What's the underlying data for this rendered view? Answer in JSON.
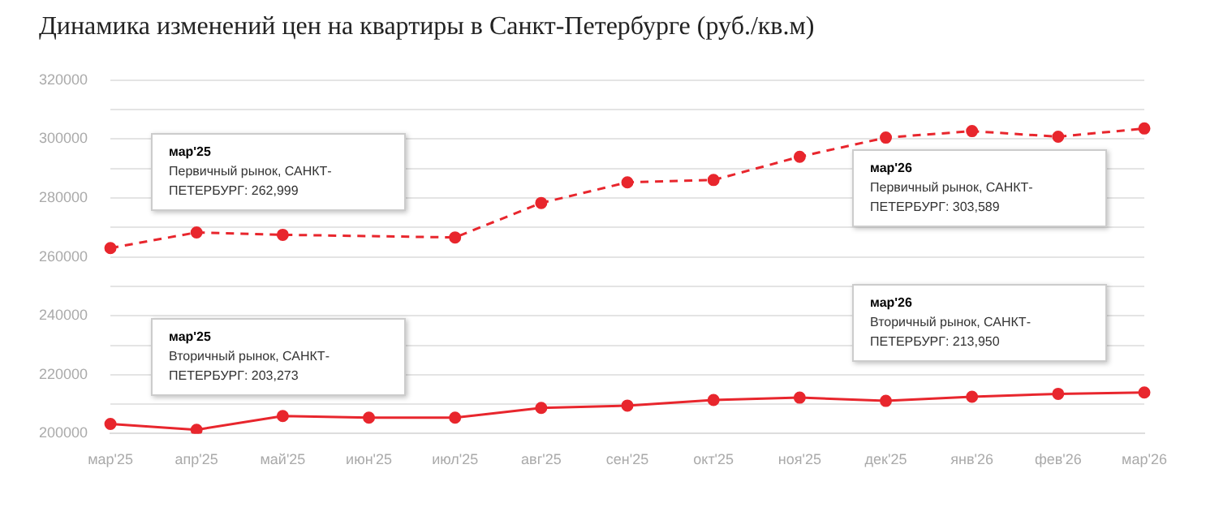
{
  "chart_data": {
    "type": "line",
    "title": "Динамика изменений цен на квартиры в Санкт-Петербурге (руб./кв.м)",
    "categories": [
      "мар'25",
      "апр'25",
      "май'25",
      "июн'25",
      "июл'25",
      "авг'25",
      "сен'25",
      "окт'25",
      "ноя'25",
      "дек'25",
      "янв'26",
      "фев'26",
      "мар'26"
    ],
    "series": [
      {
        "color": "#e8262d",
        "line_style": "dashed",
        "values": [
          262999,
          268300,
          267500,
          null,
          266600,
          278300,
          285300,
          286100,
          294000,
          300500,
          302700,
          300800,
          303589
        ]
      },
      {
        "color": "#e8262d",
        "line_style": "solid",
        "values": [
          203273,
          201300,
          205950,
          205400,
          205400,
          208700,
          209500,
          211400,
          212200,
          211100,
          212500,
          213500,
          213950
        ]
      }
    ],
    "ylim": [
      200000,
      320000
    ],
    "yticks": [
      200000,
      {
        "value": 210000,
        "label": null
      },
      220000,
      {
        "value": 230000,
        "label": null
      },
      240000,
      {
        "value": 250000,
        "label": null
      },
      260000,
      {
        "value": 270000,
        "label": null
      },
      280000,
      {
        "value": 290000,
        "label": null
      },
      300000,
      {
        "value": 310000,
        "label": null
      },
      320000
    ],
    "grid": "y",
    "legend": false,
    "marker": "circle",
    "annotations": [
      "мар'25\nПервичный рынок, САНКТ-ПЕТЕРБУРГ: 262,999",
      "мар'25\nВторичный рынок, САНКТ-ПЕТЕРБУРГ: 203,273",
      "мар'26\nПервичный рынок, САНКТ-ПЕТЕРБУРГ: 303,589",
      "мар'26\nВторичный рынок, САНКТ-ПЕТЕРБУРГ: 213,950"
    ]
  }
}
